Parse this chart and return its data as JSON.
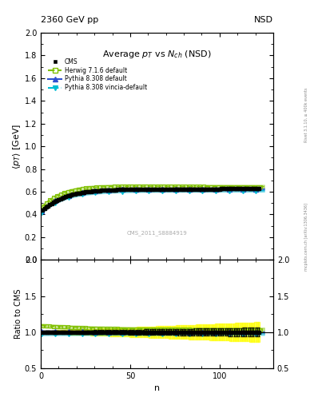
{
  "title_inside": "Average p_{T} vs N_{ch} (NSD)",
  "top_left_label": "2360 GeV pp",
  "top_right_label": "NSD",
  "watermark": "CMS_2011_S8884919",
  "right_label_top": "Rivet 3.1.10, ≥ 400k events",
  "right_label_bottom": "mcplots.cern.ch [arXiv:1306.3436]",
  "ylabel_main": "⟨p_{T}⟩ [GeV]",
  "ylabel_ratio": "Ratio to CMS",
  "xlabel": "n",
  "ylim_main": [
    0.0,
    2.0
  ],
  "ylim_ratio": [
    0.5,
    2.0
  ],
  "xlim": [
    0,
    130
  ],
  "herwig_color": "#80c000",
  "pythia_color": "#3050d0",
  "vincia_color": "#00bcd4",
  "cms_color": "#000000",
  "background_color": "#ffffff",
  "cms_pt_start": 0.42,
  "cms_pt_plateau": 0.625,
  "cms_pt_rate": 0.08,
  "herwig_ratio_start": 1.09,
  "herwig_ratio_end": 1.03,
  "pythia_ratio_start": 1.01,
  "pythia_ratio_end": 0.995,
  "vincia_ratio_start": 0.97,
  "vincia_ratio_end": 0.975
}
